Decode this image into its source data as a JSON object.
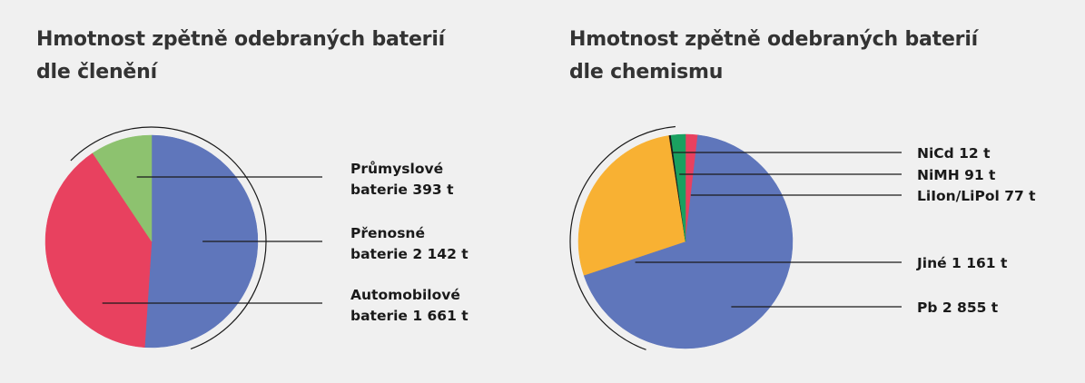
{
  "chart_data": [
    {
      "type": "pie",
      "title_lines": [
        "Hmotnost zpětně odebraných baterií",
        "dle členění"
      ],
      "slices": [
        {
          "label_lines": [
            "Průmyslové",
            "baterie 393 t"
          ],
          "value": 393,
          "color": "#8dc26f"
        },
        {
          "label_lines": [
            "Přenosné",
            "baterie 2 142 t"
          ],
          "value": 2142,
          "color": "#5f76bb"
        },
        {
          "label_lines": [
            "Automobilové",
            "baterie 1 661 t"
          ],
          "value": 1661,
          "color": "#e8415f"
        }
      ]
    },
    {
      "type": "pie",
      "title_lines": [
        "Hmotnost zpětně odebraných baterií",
        "dle chemismu"
      ],
      "slices": [
        {
          "label": "NiCd 12 t",
          "value": 12,
          "color": "#1a1a1a"
        },
        {
          "label": "NiMH 91 t",
          "value": 91,
          "color": "#1aa060"
        },
        {
          "label": "LiIon/LiPol 77 t",
          "value": 77,
          "color": "#e8415f"
        },
        {
          "label": "Jiné 1 161 t",
          "value": 1161,
          "color": "#f8b133"
        },
        {
          "label": "Pb 2 855 t",
          "value": 2855,
          "color": "#5f76bb"
        }
      ]
    }
  ]
}
